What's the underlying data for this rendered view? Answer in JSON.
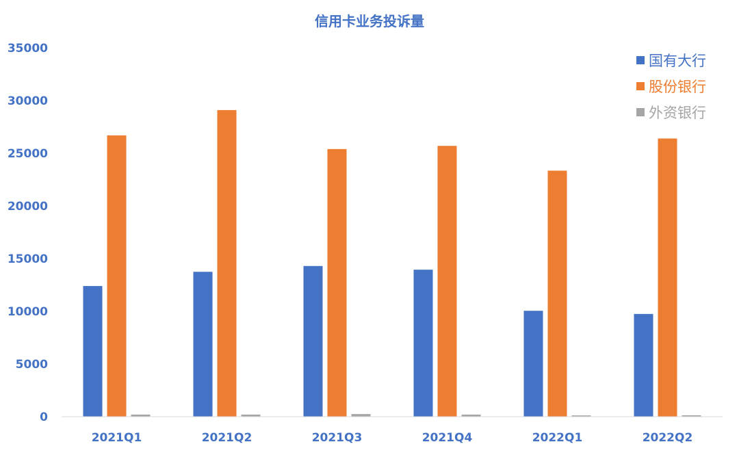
{
  "chart_data": {
    "type": "bar",
    "title": "信用卡业务投诉量",
    "categories": [
      "2021Q1",
      "2021Q2",
      "2021Q3",
      "2021Q4",
      "2022Q1",
      "2022Q2"
    ],
    "series": [
      {
        "name": "国有大行",
        "color": "#4472C4",
        "values": [
          12400,
          13750,
          14300,
          13950,
          10050,
          9750
        ]
      },
      {
        "name": "股份银行",
        "color": "#ED7D31",
        "values": [
          26700,
          29100,
          25400,
          25700,
          23350,
          26400
        ]
      },
      {
        "name": "外资银行",
        "color": "#A5A5A5",
        "values": [
          200,
          200,
          250,
          200,
          120,
          130
        ]
      }
    ],
    "ylim": [
      0,
      35000
    ],
    "yticks": [
      "0",
      "5000",
      "10000",
      "15000",
      "20000",
      "25000",
      "30000",
      "35000"
    ],
    "legend_position": "top-right",
    "grid": false,
    "colors": {
      "axis_text": "#4472C4",
      "title": "#4472C4",
      "axis_line": "#D9D9D9"
    }
  }
}
